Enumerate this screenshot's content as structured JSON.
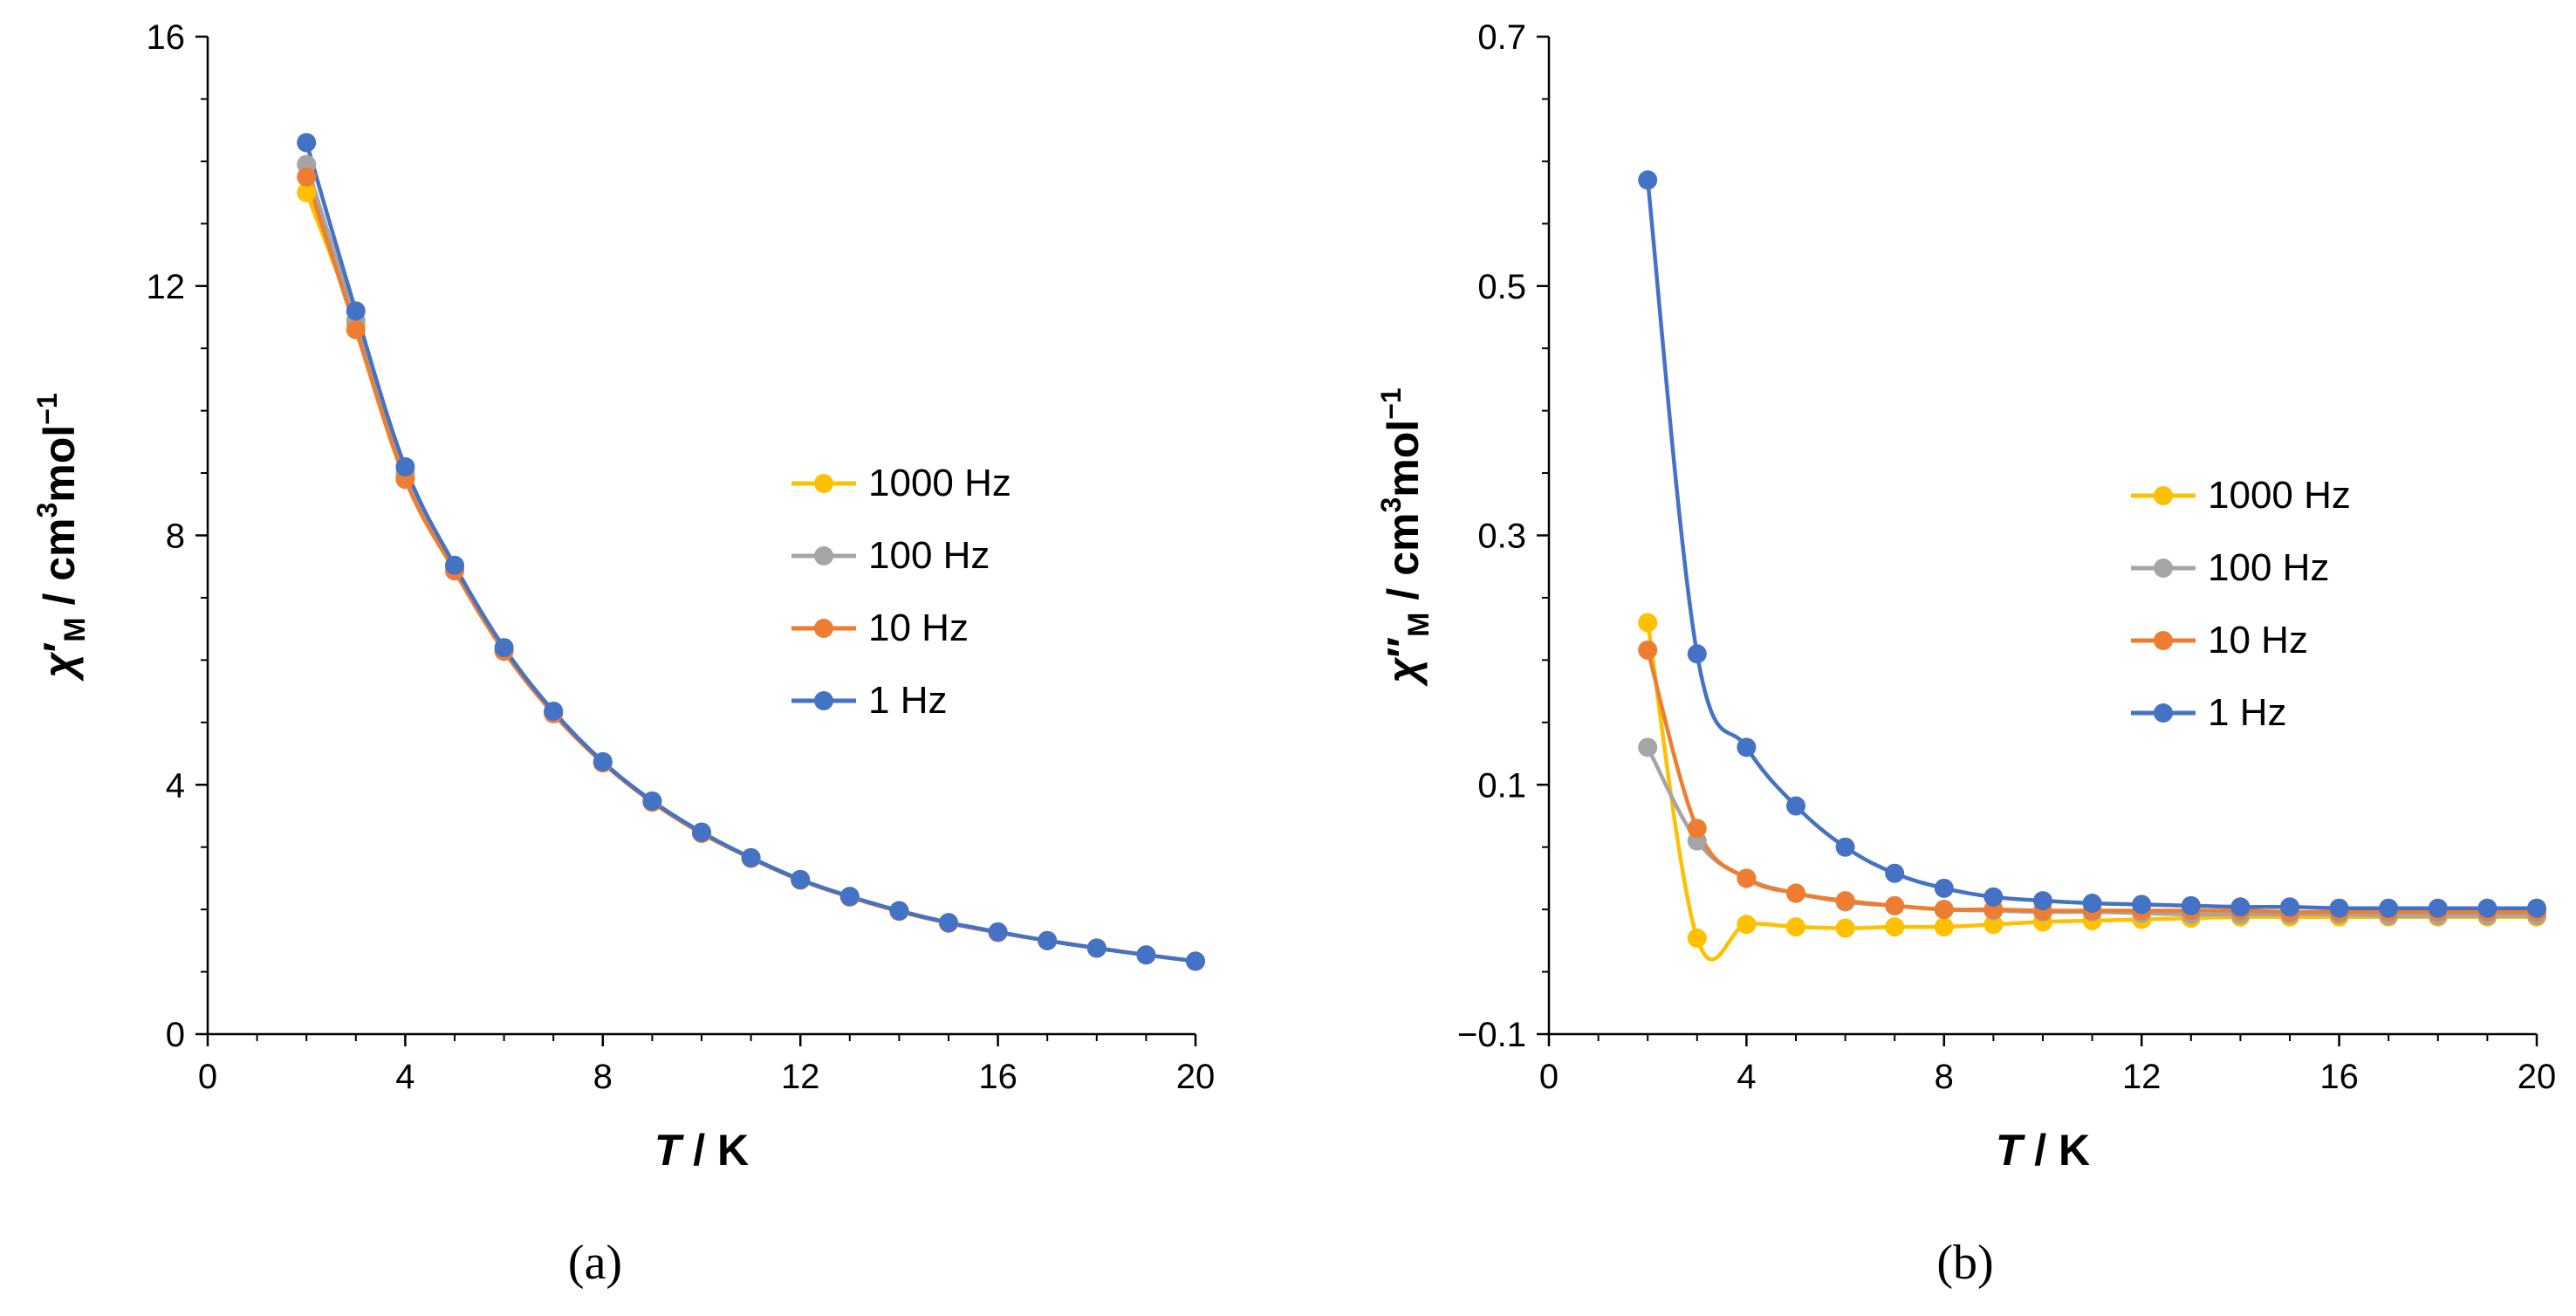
{
  "figure": {
    "caption_a": "(a)",
    "caption_b": "(b)"
  },
  "colors": {
    "1000 Hz": "#ffc000",
    "100 Hz": "#a5a5a5",
    "10 Hz": "#ed7d31",
    "1 Hz": "#4472c4"
  },
  "chart_data": [
    {
      "panel": "a",
      "type": "line",
      "xlabel": {
        "italic": "T",
        "rest": " / K"
      },
      "ylabel": {
        "chi": "χ",
        "prime": "′",
        "sub": "M",
        "unit": " / cm",
        "sup": "3",
        "unit2": "mol",
        "sup2": "−1"
      },
      "xlim": [
        0,
        20
      ],
      "ylim": [
        0,
        16
      ],
      "xticks": [
        "0",
        "4",
        "8",
        "12",
        "16",
        "20"
      ],
      "yticks": [
        "0",
        "4",
        "8",
        "12",
        "16"
      ],
      "legend_position": "center-right",
      "x": [
        2,
        3,
        4,
        5,
        6,
        7,
        8,
        9,
        10,
        11,
        12,
        13,
        14,
        15,
        16,
        17,
        18,
        19,
        20
      ],
      "series": [
        {
          "name": "1000 Hz",
          "values": [
            13.5,
            11.4,
            8.95,
            7.45,
            6.15,
            5.15,
            4.35,
            3.72,
            3.22,
            2.82,
            2.47,
            2.2,
            1.97,
            1.78,
            1.63,
            1.5,
            1.38,
            1.27,
            1.17
          ]
        },
        {
          "name": "100 Hz",
          "values": [
            13.95,
            11.45,
            9.0,
            7.48,
            6.17,
            5.16,
            4.36,
            3.73,
            3.23,
            2.83,
            2.48,
            2.2,
            1.97,
            1.78,
            1.63,
            1.5,
            1.38,
            1.27,
            1.17
          ]
        },
        {
          "name": "10 Hz",
          "values": [
            13.75,
            11.3,
            8.9,
            7.43,
            6.14,
            5.14,
            4.35,
            3.72,
            3.22,
            2.82,
            2.47,
            2.2,
            1.97,
            1.78,
            1.63,
            1.5,
            1.38,
            1.27,
            1.17
          ]
        },
        {
          "name": "1 Hz",
          "values": [
            14.3,
            11.6,
            9.1,
            7.52,
            6.2,
            5.18,
            4.37,
            3.74,
            3.24,
            2.83,
            2.48,
            2.21,
            1.98,
            1.79,
            1.64,
            1.5,
            1.38,
            1.27,
            1.17
          ]
        }
      ]
    },
    {
      "panel": "b",
      "type": "line",
      "xlabel": {
        "italic": "T",
        "rest": " / K"
      },
      "ylabel": {
        "chi": "χ",
        "prime": "″",
        "sub": "M",
        "unit": " / cm",
        "sup": "3",
        "unit2": "mol",
        "sup2": "−1"
      },
      "xlim": [
        0,
        20
      ],
      "ylim": [
        -0.1,
        0.7
      ],
      "xticks": [
        "0",
        "4",
        "8",
        "12",
        "16",
        "20"
      ],
      "yticks": [
        "−0.1",
        "0.1",
        "0.3",
        "0.5",
        "0.7"
      ],
      "legend_position": "center-right",
      "x": [
        2,
        3,
        4,
        5,
        6,
        7,
        8,
        9,
        10,
        11,
        12,
        13,
        14,
        15,
        16,
        17,
        18,
        19,
        20
      ],
      "series": [
        {
          "name": "1000 Hz",
          "values": [
            0.23,
            -0.023,
            -0.012,
            -0.014,
            -0.015,
            -0.014,
            -0.014,
            -0.012,
            -0.01,
            -0.009,
            -0.008,
            -0.007,
            -0.006,
            -0.006,
            -0.006,
            -0.006,
            -0.006,
            -0.006,
            -0.006
          ]
        },
        {
          "name": "100 Hz",
          "values": [
            0.13,
            0.055,
            0.025,
            0.013,
            0.006,
            0.003,
            0.0,
            -0.001,
            -0.002,
            -0.002,
            -0.003,
            -0.004,
            -0.004,
            -0.004,
            -0.004,
            -0.005,
            -0.005,
            -0.005,
            -0.005
          ]
        },
        {
          "name": "10 Hz",
          "values": [
            0.208,
            0.065,
            0.025,
            0.013,
            0.007,
            0.003,
            0.0,
            0.0,
            -0.001,
            -0.001,
            -0.001,
            -0.001,
            -0.001,
            -0.002,
            -0.002,
            -0.002,
            -0.002,
            -0.002,
            -0.002
          ]
        },
        {
          "name": "1 Hz",
          "values": [
            0.585,
            0.205,
            0.13,
            0.083,
            0.05,
            0.029,
            0.017,
            0.01,
            0.007,
            0.005,
            0.004,
            0.003,
            0.002,
            0.002,
            0.001,
            0.001,
            0.001,
            0.001,
            0.001
          ]
        }
      ]
    }
  ]
}
